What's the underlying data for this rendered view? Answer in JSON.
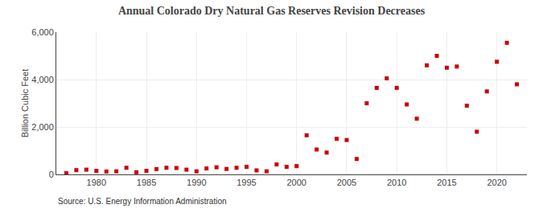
{
  "chart_data": {
    "type": "scatter",
    "title": "Annual Colorado Dry Natural Gas Reserves Revision Decreases",
    "ylabel": "Billion Cubic Feet",
    "source": "Source: U.S. Energy Information Administration",
    "x": [
      1977,
      1978,
      1979,
      1980,
      1981,
      1982,
      1983,
      1984,
      1985,
      1986,
      1987,
      1988,
      1989,
      1990,
      1991,
      1992,
      1993,
      1994,
      1995,
      1996,
      1997,
      1998,
      1999,
      2000,
      2001,
      2002,
      2003,
      2004,
      2005,
      2006,
      2007,
      2008,
      2009,
      2010,
      2011,
      2012,
      2013,
      2014,
      2015,
      2016,
      2017,
      2018,
      2019,
      2020,
      2021,
      2022
    ],
    "values": [
      50,
      180,
      200,
      150,
      120,
      130,
      280,
      90,
      150,
      220,
      280,
      270,
      200,
      130,
      250,
      300,
      230,
      280,
      320,
      170,
      130,
      420,
      320,
      350,
      1650,
      1050,
      920,
      1500,
      1450,
      650,
      3000,
      3650,
      4050,
      3650,
      2950,
      2350,
      4600,
      5000,
      4500,
      4550,
      2900,
      1800,
      3500,
      4750,
      5550,
      3800
    ],
    "color": "#cc0000",
    "marker": "square",
    "xlim": [
      1976,
      2023
    ],
    "xticks": [
      1980,
      1985,
      1990,
      1995,
      2000,
      2005,
      2010,
      2015,
      2020
    ],
    "ylim": [
      0,
      6000
    ],
    "yticks": [
      0,
      {
        "value": 2000,
        "label": "2,000"
      },
      {
        "value": 4000,
        "label": "4,000"
      },
      {
        "value": 6000,
        "label": "6,000"
      }
    ],
    "grid": true
  }
}
